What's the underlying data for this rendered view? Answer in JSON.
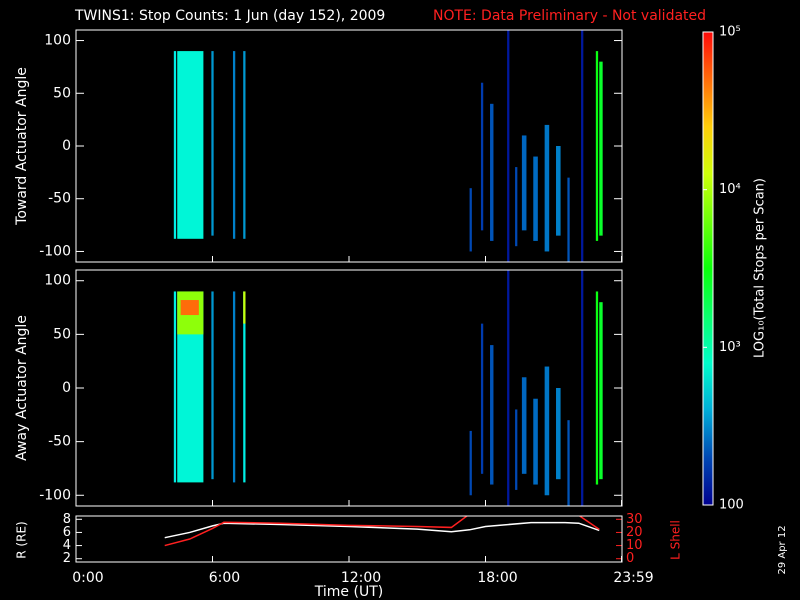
{
  "chart_data": [
    {
      "type": "heatmap",
      "title": "TWINS1: Stop Counts:  1 Jun (day 152), 2009",
      "subtitle": "NOTE: Data Preliminary - Not validated",
      "ylabel": "Toward Actuator Angle",
      "xlim": [
        0,
        24
      ],
      "ylim": [
        -110,
        110
      ],
      "yticks": [
        -100,
        -50,
        0,
        50,
        100
      ],
      "colorbar": {
        "label": "LOG₁₀(Total Stops per Scan)",
        "lim": [
          100,
          100000
        ],
        "ticks": [
          100,
          {
            "value": 1000,
            "label": "10³"
          },
          {
            "value": 10000,
            "label": "10⁴"
          },
          {
            "value": 100000,
            "label": "10⁵"
          }
        ]
      },
      "cells": [
        {
          "x0": 4.3,
          "x1": 4.4,
          "y0": -88,
          "y1": 90,
          "value": 600
        },
        {
          "x0": 4.45,
          "x1": 5.6,
          "y0": -88,
          "y1": 90,
          "value": 700
        },
        {
          "x0": 5.95,
          "x1": 6.05,
          "y0": -85,
          "y1": 90,
          "value": 350
        },
        {
          "x0": 6.9,
          "x1": 7.0,
          "y0": -88,
          "y1": 90,
          "value": 300
        },
        {
          "x0": 7.35,
          "x1": 7.45,
          "y0": -88,
          "y1": 90,
          "value": 350
        },
        {
          "x0": 17.3,
          "x1": 17.4,
          "y0": -100,
          "y1": -40,
          "value": 200
        },
        {
          "x0": 17.8,
          "x1": 17.9,
          "y0": -80,
          "y1": 60,
          "value": 180
        },
        {
          "x0": 18.2,
          "x1": 18.35,
          "y0": -90,
          "y1": 40,
          "value": 220
        },
        {
          "x0": 18.95,
          "x1": 19.05,
          "y0": -110,
          "y1": 110,
          "value": 130
        },
        {
          "x0": 19.3,
          "x1": 19.4,
          "y0": -95,
          "y1": -20,
          "value": 200
        },
        {
          "x0": 19.6,
          "x1": 19.8,
          "y0": -80,
          "y1": 10,
          "value": 250
        },
        {
          "x0": 20.1,
          "x1": 20.3,
          "y0": -90,
          "y1": -10,
          "value": 260
        },
        {
          "x0": 20.6,
          "x1": 20.8,
          "y0": -100,
          "y1": 20,
          "value": 280
        },
        {
          "x0": 21.1,
          "x1": 21.3,
          "y0": -85,
          "y1": 0,
          "value": 300
        },
        {
          "x0": 21.6,
          "x1": 21.7,
          "y0": -110,
          "y1": -30,
          "value": 220
        },
        {
          "x0": 22.2,
          "x1": 22.3,
          "y0": -110,
          "y1": 110,
          "value": 130
        },
        {
          "x0": 22.85,
          "x1": 22.95,
          "y0": -90,
          "y1": 90,
          "value": 3000
        },
        {
          "x0": 23.0,
          "x1": 23.15,
          "y0": -85,
          "y1": 80,
          "value": 2500
        }
      ]
    },
    {
      "type": "heatmap",
      "ylabel": "Away Actuator Angle",
      "xlim": [
        0,
        24
      ],
      "ylim": [
        -110,
        110
      ],
      "yticks": [
        -100,
        -50,
        0,
        50,
        100
      ],
      "cells": [
        {
          "x0": 4.3,
          "x1": 4.4,
          "y0": -88,
          "y1": 90,
          "value": 600
        },
        {
          "x0": 4.45,
          "x1": 5.6,
          "y0": -88,
          "y1": 90,
          "value": 700
        },
        {
          "x0": 4.45,
          "x1": 5.6,
          "y0": 50,
          "y1": 90,
          "value": 8000
        },
        {
          "x0": 4.6,
          "x1": 5.4,
          "y0": 68,
          "y1": 82,
          "value": 50000
        },
        {
          "x0": 5.95,
          "x1": 6.05,
          "y0": -85,
          "y1": 90,
          "value": 350
        },
        {
          "x0": 6.9,
          "x1": 7.0,
          "y0": -88,
          "y1": 90,
          "value": 300
        },
        {
          "x0": 7.35,
          "x1": 7.45,
          "y0": -88,
          "y1": 90,
          "value": 600
        },
        {
          "x0": 7.35,
          "x1": 7.45,
          "y0": 60,
          "y1": 90,
          "value": 12000
        },
        {
          "x0": 17.3,
          "x1": 17.4,
          "y0": -100,
          "y1": -40,
          "value": 200
        },
        {
          "x0": 17.8,
          "x1": 17.9,
          "y0": -80,
          "y1": 60,
          "value": 180
        },
        {
          "x0": 18.2,
          "x1": 18.35,
          "y0": -90,
          "y1": 40,
          "value": 220
        },
        {
          "x0": 18.95,
          "x1": 19.05,
          "y0": -110,
          "y1": 110,
          "value": 130
        },
        {
          "x0": 19.3,
          "x1": 19.4,
          "y0": -95,
          "y1": -20,
          "value": 200
        },
        {
          "x0": 19.6,
          "x1": 19.8,
          "y0": -80,
          "y1": 10,
          "value": 250
        },
        {
          "x0": 20.1,
          "x1": 20.3,
          "y0": -90,
          "y1": -10,
          "value": 260
        },
        {
          "x0": 20.6,
          "x1": 20.8,
          "y0": -100,
          "y1": 20,
          "value": 280
        },
        {
          "x0": 21.1,
          "x1": 21.3,
          "y0": -85,
          "y1": 0,
          "value": 300
        },
        {
          "x0": 21.6,
          "x1": 21.7,
          "y0": -110,
          "y1": -30,
          "value": 220
        },
        {
          "x0": 22.2,
          "x1": 22.3,
          "y0": -110,
          "y1": 110,
          "value": 130
        },
        {
          "x0": 22.85,
          "x1": 22.95,
          "y0": -90,
          "y1": 90,
          "value": 3000
        },
        {
          "x0": 23.0,
          "x1": 23.15,
          "y0": -85,
          "y1": 80,
          "value": 2500
        }
      ]
    },
    {
      "type": "line",
      "xlabel": "Time (UT)",
      "ylabel": "R (RE)",
      "y2label": "L Shell",
      "annotation": "29 Apr 12",
      "xlim": [
        0,
        24
      ],
      "xticks": [
        {
          "value": 0,
          "label": "0:00"
        },
        {
          "value": 6,
          "label": "6:00"
        },
        {
          "value": 12,
          "label": "12:00"
        },
        {
          "value": 18,
          "label": "18:00"
        },
        {
          "value": 23.98,
          "label": "23:59"
        }
      ],
      "ylim": [
        1.5,
        8.5
      ],
      "yticks": [
        2,
        4,
        6,
        8
      ],
      "y2lim": [
        -2.5,
        32.5
      ],
      "y2ticks": [
        0,
        10,
        20,
        30
      ],
      "x": [
        3.9,
        5,
        6,
        6.5,
        9,
        12,
        15,
        16.5,
        17.3,
        18,
        20,
        21.5,
        22.1,
        23
      ],
      "series": [
        {
          "color": "#ffffff",
          "values": [
            5.2,
            6.0,
            7.0,
            7.4,
            7.2,
            6.9,
            6.5,
            6.1,
            6.4,
            6.9,
            7.5,
            7.5,
            7.4,
            6.3
          ]
        },
        {
          "color": "#ff2020",
          "axis": "y2",
          "values": [
            10,
            15,
            23,
            27.7,
            27,
            25.4,
            24.5,
            23.8,
            34,
            null,
            null,
            null,
            33,
            22.3
          ]
        }
      ]
    }
  ]
}
